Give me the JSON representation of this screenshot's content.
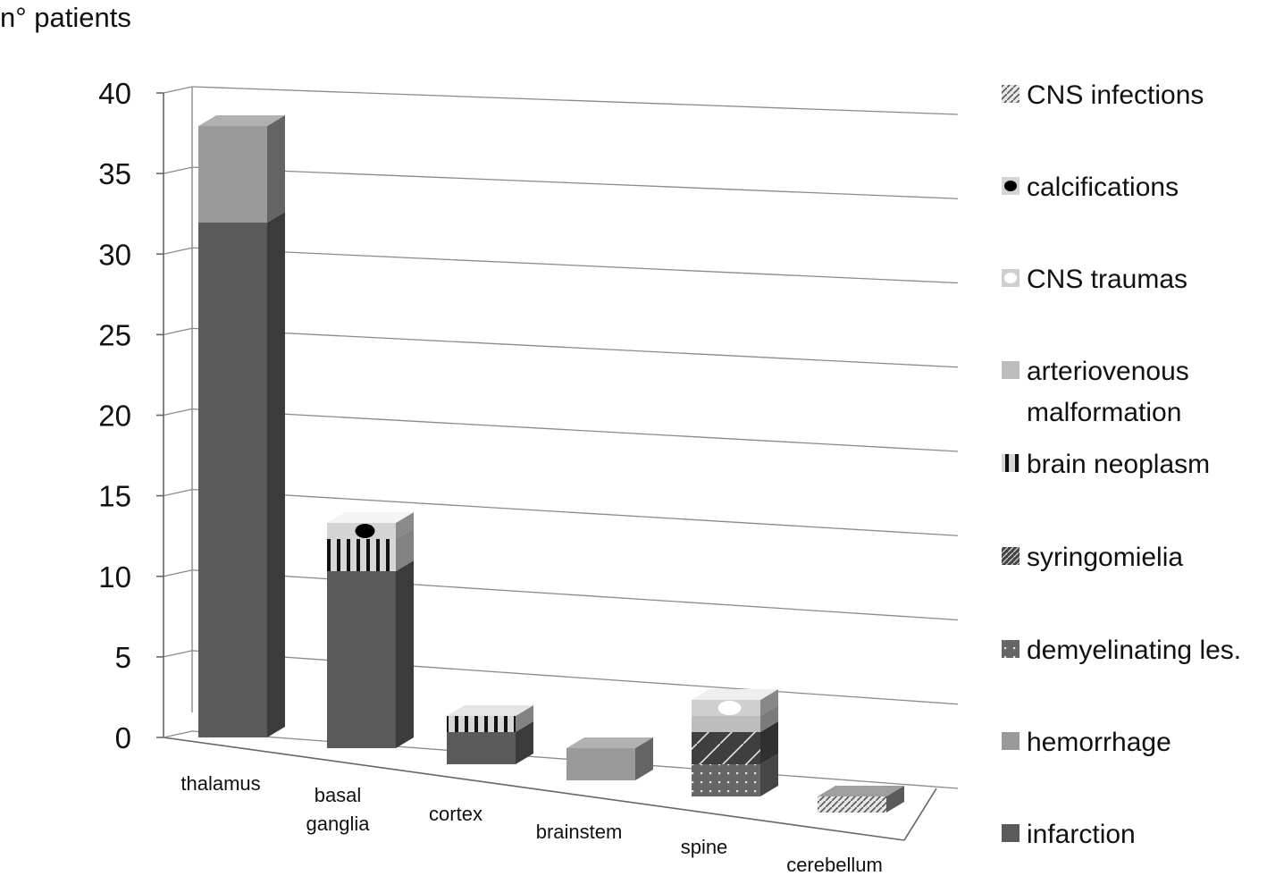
{
  "chart_data": {
    "type": "bar",
    "stacked": true,
    "three_d": true,
    "ylabel": "n° patients",
    "xlabel": "",
    "ylim": [
      0,
      40
    ],
    "yticks": [
      0,
      5,
      10,
      15,
      20,
      25,
      30,
      35,
      40
    ],
    "grid": true,
    "legend_position": "right",
    "categories": [
      "thalamus",
      "basal ganglia",
      "cortex",
      "brainstem",
      "spine",
      "cerebellum"
    ],
    "category_lines": [
      [
        "thalamus"
      ],
      [
        "basal",
        "ganglia"
      ],
      [
        "cortex"
      ],
      [
        "brainstem"
      ],
      [
        "spine"
      ],
      [
        "cerebellum"
      ]
    ],
    "series": [
      {
        "name": "infarction",
        "values": [
          32,
          11,
          2,
          0,
          0,
          0
        ],
        "color": "#5a5a5a",
        "pattern": "solid"
      },
      {
        "name": "hemorrhage",
        "values": [
          6,
          0,
          0,
          2,
          0,
          0
        ],
        "color": "#9a9a9a",
        "pattern": "solid"
      },
      {
        "name": "demyelinating les.",
        "values": [
          0,
          0,
          0,
          0,
          2,
          0
        ],
        "color": "#6c6c6c",
        "pattern": "dots"
      },
      {
        "name": "syringomielia",
        "values": [
          0,
          0,
          0,
          0,
          2,
          0
        ],
        "color": "#4a4a4a",
        "pattern": "diag-light"
      },
      {
        "name": "brain neoplasm",
        "values": [
          0,
          2,
          1,
          0,
          0,
          0
        ],
        "color": "#c8c8c8",
        "pattern": "vstripes"
      },
      {
        "name": "arteriovenous malformation",
        "values": [
          0,
          0,
          0,
          0,
          1,
          0
        ],
        "color": "#bdbdbd",
        "pattern": "solid"
      },
      {
        "name": "CNS traumas",
        "values": [
          0,
          0,
          0,
          0,
          1,
          0
        ],
        "color": "#cfcfcf",
        "pattern": "circle"
      },
      {
        "name": "calcifications",
        "values": [
          0,
          1,
          0,
          0,
          0,
          0
        ],
        "color": "#d4d4d4",
        "pattern": "dot-black"
      },
      {
        "name": "CNS infections",
        "values": [
          0,
          0,
          0,
          0,
          0,
          1
        ],
        "color": "#8a8a8a",
        "pattern": "diag"
      }
    ],
    "legend_order": [
      {
        "label": "CNS infections",
        "lines": [
          "CNS infections"
        ]
      },
      {
        "label": "calcifications",
        "lines": [
          "calcifications"
        ]
      },
      {
        "label": "CNS traumas",
        "lines": [
          "CNS traumas"
        ]
      },
      {
        "label": "arteriovenous malformation",
        "lines": [
          "arteriovenous",
          "malformation"
        ]
      },
      {
        "label": "brain neoplasm",
        "lines": [
          "brain neoplasm"
        ]
      },
      {
        "label": "syringomielia",
        "lines": [
          "syringomielia"
        ]
      },
      {
        "label": "demyelinating les.",
        "lines": [
          "demyelinating les."
        ]
      },
      {
        "label": "hemorrhage",
        "lines": [
          "hemorrhage"
        ]
      },
      {
        "label": "infarction",
        "lines": [
          "infarction"
        ]
      }
    ]
  }
}
